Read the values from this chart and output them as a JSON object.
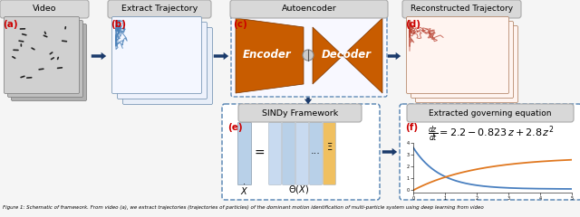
{
  "labels": {
    "a": "(a)",
    "b": "(b)",
    "c": "(c)",
    "d": "(d)",
    "e": "(e)",
    "f": "(f)"
  },
  "box_labels": {
    "video": "Video",
    "extract": "Extract Trajectory",
    "autoencoder": "Autoencoder",
    "reconstructed": "Reconstructed Trajectory",
    "sindy": "SINDy Framework",
    "equation": "Extracted governing equation"
  },
  "encoder_label": "Encoder",
  "decoder_label": "Decoder",
  "matrix_x": "$\\dot{X}$",
  "matrix_theta": "$\\Theta(X)$",
  "matrix_xi": "$\\Xi$",
  "equation_text": "$\\frac{dz}{dt} = 2.2 - 0.823\\,z + 2.8\\,z^2$",
  "colors": {
    "background": "#f5f5f5",
    "box_bg": "#d8d8d8",
    "box_border": "#aaaaaa",
    "arrow": "#1a3a6b",
    "encoder_color": "#c85c00",
    "decoder_color": "#c85c00",
    "trajectory_blue": "#4a80b8",
    "trajectory_red": "#b84030",
    "matrix_blue": "#b8d0e8",
    "matrix_blue2": "#c8daf0",
    "matrix_yellow": "#f0c060",
    "dashed_box": "#5080b0",
    "label_red": "#cc0000",
    "video_gray1": "#b0b0b0",
    "video_gray2": "#c0c0c0",
    "video_gray3": "#d0d0d0",
    "curve_blue": "#4a80c0",
    "curve_orange": "#e07820"
  },
  "figure_caption": "Figure 1: Schematic of framework. From video (a), we extract trajectories (trajectories of particles) of the dominant motion identification of multi-particle system using deep learning from video"
}
